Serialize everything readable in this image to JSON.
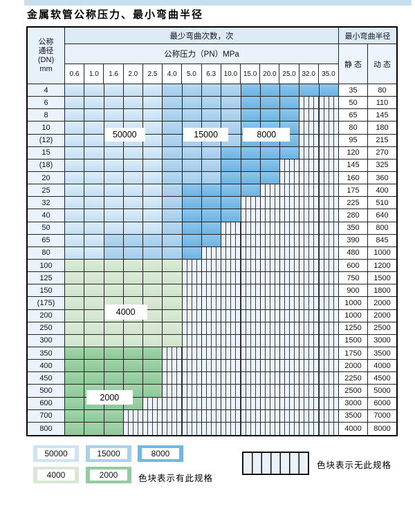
{
  "title": "金属软管公称压力、最小弯曲半径",
  "table": {
    "dn_header_lines": [
      "公称",
      "通径",
      "(DN)",
      "mm"
    ],
    "cycles_header": "最少弯曲次数，次",
    "pressure_header": "公称压力（PN）MPa",
    "radius_header": "最小弯曲半径",
    "static_label": "静 态",
    "dynamic_label": "动 态",
    "pressure_columns": [
      "0.6",
      "1.0",
      "1.6",
      "2.0",
      "2.5",
      "4.0",
      "5.0",
      "6.3",
      "10.0",
      "15.0",
      "20.0",
      "25.0",
      "32.0",
      "35.0"
    ],
    "code_values": {
      "A": 50000,
      "B": 15000,
      "C": 8000,
      "D": 4000,
      "E": 2000,
      "X": null
    },
    "rows": [
      {
        "dn": "4",
        "cells": "AAAAABBBBCCCCC",
        "static": "35",
        "dynamic": "80"
      },
      {
        "dn": "6",
        "cells": "AAAAABBBBCCCXX",
        "static": "50",
        "dynamic": "110"
      },
      {
        "dn": "8",
        "cells": "AAAAABBBBCCCXX",
        "static": "65",
        "dynamic": "145"
      },
      {
        "dn": "10",
        "cells": "AAAAABBBBCCCXX",
        "static": "80",
        "dynamic": "180"
      },
      {
        "dn": "(12)",
        "cells": "AAAAABBBBCCCXX",
        "static": "95",
        "dynamic": "215"
      },
      {
        "dn": "15",
        "cells": "AAAAABBBCCCCXX",
        "static": "120",
        "dynamic": "270"
      },
      {
        "dn": "(18)",
        "cells": "AAAAABBBCCCXXX",
        "static": "145",
        "dynamic": "325"
      },
      {
        "dn": "20",
        "cells": "AAAAABBBCCCXXX",
        "static": "160",
        "dynamic": "360"
      },
      {
        "dn": "25",
        "cells": "AAAAABCCCCXXXX",
        "static": "175",
        "dynamic": "400"
      },
      {
        "dn": "32",
        "cells": "AAAAABCCCXXXXX",
        "static": "225",
        "dynamic": "510"
      },
      {
        "dn": "40",
        "cells": "AAAAABCCCXXXXX",
        "static": "280",
        "dynamic": "640"
      },
      {
        "dn": "50",
        "cells": "AAAAABCCXXXXXX",
        "static": "350",
        "dynamic": "800"
      },
      {
        "dn": "65",
        "cells": "AABBBBCCXXXXXX",
        "static": "390",
        "dynamic": "845"
      },
      {
        "dn": "80",
        "cells": "AABBBBCXXXXXXX",
        "static": "480",
        "dynamic": "1000"
      },
      {
        "dn": "100",
        "cells": "DDDDDDXXXXXXXX",
        "static": "600",
        "dynamic": "1200"
      },
      {
        "dn": "125",
        "cells": "DDDDDDXXXXXXXX",
        "static": "750",
        "dynamic": "1500"
      },
      {
        "dn": "150",
        "cells": "DDDDDDXXXXXXXX",
        "static": "900",
        "dynamic": "1800"
      },
      {
        "dn": "(175)",
        "cells": "DDDDDDXXXXXXXX",
        "static": "1000",
        "dynamic": "2000"
      },
      {
        "dn": "200",
        "cells": "DDDDDDXXXXXXXX",
        "static": "1000",
        "dynamic": "2000"
      },
      {
        "dn": "250",
        "cells": "DDDDDDXXXXXXXX",
        "static": "1250",
        "dynamic": "2500"
      },
      {
        "dn": "300",
        "cells": "DDDDDDXXXXXXXX",
        "static": "1500",
        "dynamic": "3000"
      },
      {
        "dn": "350",
        "cells": "EEEEEXXXXXXXXX",
        "static": "1750",
        "dynamic": "3500"
      },
      {
        "dn": "400",
        "cells": "EEEEEXXXXXXXXX",
        "static": "2000",
        "dynamic": "4000"
      },
      {
        "dn": "450",
        "cells": "EEEEEXXXXXXXXX",
        "static": "2250",
        "dynamic": "4500"
      },
      {
        "dn": "500",
        "cells": "EEEEEXXXXXXXXX",
        "static": "2500",
        "dynamic": "5000"
      },
      {
        "dn": "600",
        "cells": "EEEEXXXXXXXXXX",
        "static": "3000",
        "dynamic": "6000"
      },
      {
        "dn": "700",
        "cells": "EEEXXXXXXXXXXX",
        "static": "3500",
        "dynamic": "7000"
      },
      {
        "dn": "800",
        "cells": "EEEXXXXXXXXXXX",
        "static": "4000",
        "dynamic": "8000"
      }
    ],
    "region_labels": [
      {
        "text": "50000",
        "col": 2.0,
        "cols": 2.1,
        "row": 3.45,
        "rows": 1.15
      },
      {
        "text": "15000",
        "col": 6.05,
        "cols": 2.3,
        "row": 3.45,
        "rows": 1.15
      },
      {
        "text": "8000",
        "col": 9.1,
        "cols": 2.4,
        "row": 3.45,
        "rows": 1.15
      },
      {
        "text": "4000",
        "col": 2.0,
        "cols": 2.2,
        "row": 17.6,
        "rows": 1.2
      },
      {
        "text": "2000",
        "col": 1.1,
        "cols": 2.35,
        "row": 24.4,
        "rows": 1.2
      }
    ]
  },
  "legend": {
    "items": [
      {
        "label": "50000",
        "color": "#cde4f6"
      },
      {
        "label": "15000",
        "color": "#a6d1ef"
      },
      {
        "label": "8000",
        "color": "#6fb7e5"
      },
      {
        "label": "4000",
        "color": "#d8e8d2"
      },
      {
        "label": "2000",
        "color": "#93cc9f"
      }
    ],
    "has_spec_note": "色块表示有此规格",
    "no_spec_note": "色块表示无此规格"
  },
  "chart_data": {
    "type": "table",
    "title": "金属软管公称压力、最小弯曲半径",
    "columns_pressure_PN_MPa": [
      0.6,
      1.0,
      1.6,
      2.0,
      2.5,
      4.0,
      5.0,
      6.3,
      10.0,
      15.0,
      20.0,
      25.0,
      32.0,
      35.0
    ],
    "legend_bend_cycles": {
      "A": 50000,
      "B": 15000,
      "C": 8000,
      "D": 4000,
      "E": 2000,
      "X": "无此规格"
    },
    "rows_dn_mm": [
      "4",
      "6",
      "8",
      "10",
      "(12)",
      "15",
      "(18)",
      "20",
      "25",
      "32",
      "40",
      "50",
      "65",
      "80",
      "100",
      "125",
      "150",
      "(175)",
      "200",
      "250",
      "300",
      "350",
      "400",
      "450",
      "500",
      "600",
      "700",
      "800"
    ],
    "bend_cycle_codes_per_row": [
      "AAAAABBBBCCCCC",
      "AAAAABBBBCCCXX",
      "AAAAABBBBCCCXX",
      "AAAAABBBBCCCXX",
      "AAAAABBBBCCCXX",
      "AAAAABBBCCCCXX",
      "AAAAABBBCCCXXX",
      "AAAAABBBCCCXXX",
      "AAAAABCCCCXXXX",
      "AAAAABCCCXXXXX",
      "AAAAABCCCXXXXX",
      "AAAAABCCXXXXXX",
      "AABBBBCCXXXXXX",
      "AABBBBCXXXXXXX",
      "DDDDDDXXXXXXXX",
      "DDDDDDXXXXXXXX",
      "DDDDDDXXXXXXXX",
      "DDDDDDXXXXXXXX",
      "DDDDDDXXXXXXXX",
      "DDDDDDXXXXXXXX",
      "DDDDDDXXXXXXXX",
      "EEEEEXXXXXXXXX",
      "EEEEEXXXXXXXXX",
      "EEEEEXXXXXXXXX",
      "EEEEEXXXXXXXXX",
      "EEEEXXXXXXXXXX",
      "EEEXXXXXXXXXXX",
      "EEEXXXXXXXXXXX"
    ],
    "min_bend_radius_static": [
      35,
      50,
      65,
      80,
      95,
      120,
      145,
      160,
      175,
      225,
      280,
      350,
      390,
      480,
      600,
      750,
      900,
      1000,
      1000,
      1250,
      1500,
      1750,
      2000,
      2250,
      2500,
      3000,
      3500,
      4000
    ],
    "min_bend_radius_dynamic": [
      80,
      110,
      145,
      180,
      215,
      270,
      325,
      360,
      400,
      510,
      640,
      800,
      845,
      1000,
      1200,
      1500,
      1800,
      2000,
      2000,
      2500,
      3000,
      3500,
      4000,
      4500,
      5000,
      6000,
      7000,
      8000
    ]
  }
}
